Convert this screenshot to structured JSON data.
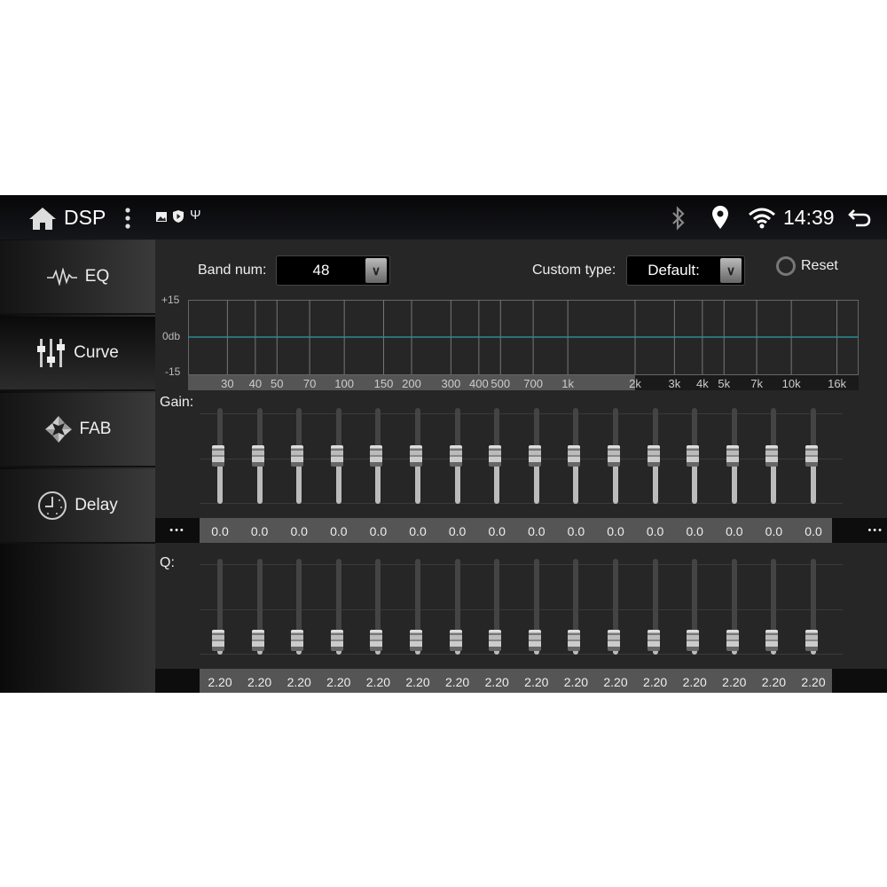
{
  "statusbar": {
    "title": "DSP",
    "time": "14:39",
    "icons": [
      "home-icon",
      "more-vert-icon",
      "image-icon",
      "shield-play-icon",
      "usb-icon",
      "bluetooth-icon",
      "location-pin-icon",
      "wifi-icon",
      "back-icon"
    ]
  },
  "sidebar": {
    "items": [
      {
        "label": "EQ",
        "icon": "waveform-icon"
      },
      {
        "label": "Curve",
        "icon": "sliders-icon"
      },
      {
        "label": "FAB",
        "icon": "fader-balance-icon"
      },
      {
        "label": "Delay",
        "icon": "clock-icon"
      }
    ],
    "active": "Curve"
  },
  "controls": {
    "band_num_label": "Band num:",
    "band_num_value": "48",
    "custom_type_label": "Custom type:",
    "custom_type_value": "Default:",
    "reset_label": "Reset"
  },
  "chart": {
    "y_top": "+15",
    "y_mid": "0db",
    "y_bottom": "-15",
    "x_ticks": [
      "30",
      "40",
      "50",
      "70",
      "100",
      "150",
      "200",
      "300",
      "400",
      "500",
      "700",
      "1k",
      "2k",
      "3k",
      "4k",
      "5k",
      "7k",
      "10k",
      "16k"
    ],
    "curve_color": "#2a8a94"
  },
  "gain": {
    "label": "Gain:",
    "more": "•••",
    "values": [
      "0.0",
      "0.0",
      "0.0",
      "0.0",
      "0.0",
      "0.0",
      "0.0",
      "0.0",
      "0.0",
      "0.0",
      "0.0",
      "0.0",
      "0.0",
      "0.0",
      "0.0",
      "0.0"
    ],
    "range": [
      -15,
      15
    ]
  },
  "q": {
    "label": "Q:",
    "values": [
      "2.20",
      "2.20",
      "2.20",
      "2.20",
      "2.20",
      "2.20",
      "2.20",
      "2.20",
      "2.20",
      "2.20",
      "2.20",
      "2.20",
      "2.20",
      "2.20",
      "2.20",
      "2.20"
    ]
  }
}
